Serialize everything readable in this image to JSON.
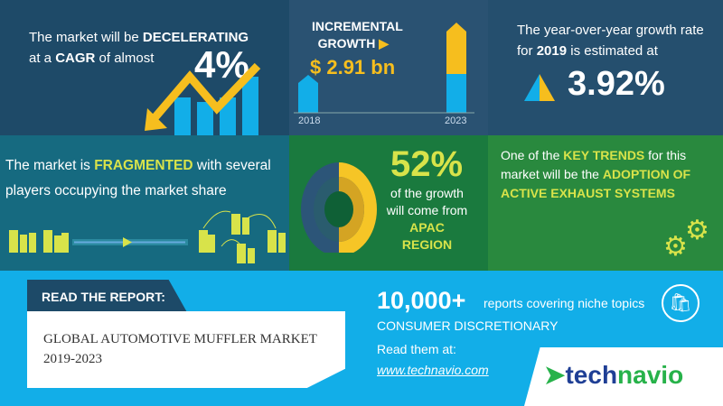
{
  "cagr": {
    "line1_pre": "The market will be ",
    "line1_bold": "DECELERATING",
    "line2_pre": "at a ",
    "line2_bold": "CAGR",
    "line2_post": " of almost",
    "value": "4%"
  },
  "growth": {
    "label1": "INCREMENTAL",
    "label2": "GROWTH",
    "value": "$ 2.91 bn",
    "year_start": "2018",
    "year_end": "2023"
  },
  "yoy": {
    "line1": "The year-over-year growth rate",
    "line2_pre": "for ",
    "line2_bold": "2019",
    "line2_post": " is estimated at",
    "value": "3.92%"
  },
  "fragmented": {
    "pre": "The market is ",
    "bold": "FRAGMENTED",
    "post": " with several",
    "line2": "players occupying the market share"
  },
  "region": {
    "value": "52%",
    "line1": "of the growth",
    "line2": "will come from",
    "region": "APAC REGION",
    "share": 0.52
  },
  "trend": {
    "pre": "One of the ",
    "bold1": "KEY TRENDS",
    "mid": " for this",
    "line2": "market will be the ",
    "bold2": "ADOPTION OF",
    "line3": "ACTIVE EXHAUST SYSTEMS"
  },
  "report": {
    "header": "READ THE REPORT:",
    "title": "GLOBAL AUTOMOTIVE MUFFLER MARKET",
    "years": "2019-2023"
  },
  "promo": {
    "count": "10,000+",
    "count_text": "reports covering niche topics",
    "category": "CONSUMER DISCRETIONARY",
    "read": "Read them at:",
    "url": "www.technavio.com"
  },
  "logo": {
    "text1": "tech",
    "text2": "navio"
  },
  "colors": {
    "yellow": "#f6be1e",
    "blue": "#12aee8",
    "green": "#d8e34a"
  }
}
